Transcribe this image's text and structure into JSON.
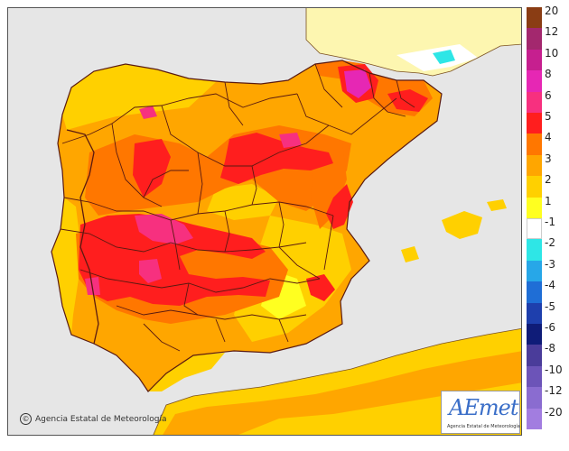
{
  "map": {
    "credit": "Agencia Estatal de Meteorología",
    "logo_text": "AEmet",
    "logo_subtext": "Agencia Estatal de Meteorología",
    "sea_color": "#e6e6e6",
    "outside_land_color": "#fdf6b0"
  },
  "legend": {
    "items": [
      {
        "label": "20",
        "color": "#8a3d14"
      },
      {
        "label": "12",
        "color": "#a3286e"
      },
      {
        "label": "10",
        "color": "#c61f8f"
      },
      {
        "label": "8",
        "color": "#e627b4"
      },
      {
        "label": "6",
        "color": "#f7307f"
      },
      {
        "label": "5",
        "color": "#ff1e1e"
      },
      {
        "label": "4",
        "color": "#ff7700"
      },
      {
        "label": "3",
        "color": "#ffa600"
      },
      {
        "label": "2",
        "color": "#ffd000"
      },
      {
        "label": "1",
        "color": "#ffff20"
      },
      {
        "label": "-1",
        "color": "#ffffff"
      },
      {
        "label": "-2",
        "color": "#2ee6e6"
      },
      {
        "label": "-3",
        "color": "#27a7e8"
      },
      {
        "label": "-4",
        "color": "#1f6ed6"
      },
      {
        "label": "-5",
        "color": "#1e3fad"
      },
      {
        "label": "-6",
        "color": "#0f1c78"
      },
      {
        "label": "-8",
        "color": "#4a3c9a"
      },
      {
        "label": "-10",
        "color": "#6c54b8"
      },
      {
        "label": "-12",
        "color": "#8a6cd0"
      },
      {
        "label": "-20",
        "color": "#a27de0"
      }
    ]
  }
}
